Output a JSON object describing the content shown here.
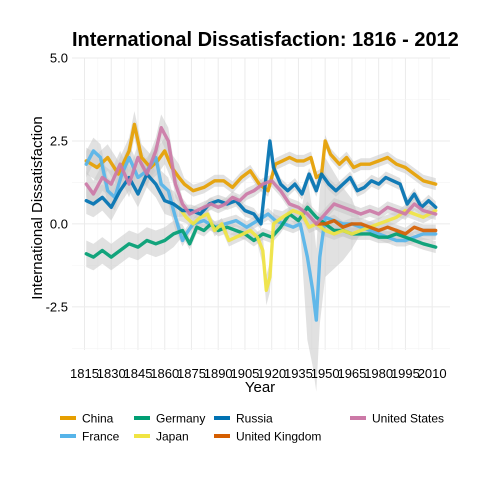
{
  "chart_data": {
    "type": "line",
    "title": "International Dissatisfaction: 1816 - 2012",
    "xlabel": "Year",
    "ylabel": "International Dissatisfaction",
    "xlim": [
      1808,
      2020
    ],
    "ylim": [
      -3.8,
      5.0
    ],
    "x_ticks": [
      "1815",
      "1830",
      "1845",
      "1860",
      "1875",
      "1890",
      "1905",
      "1920",
      "1935",
      "1950",
      "1965",
      "1980",
      "1995",
      "2010"
    ],
    "y_ticks": [
      "-2.5",
      "0.0",
      "2.5",
      "5.0"
    ],
    "grid": true,
    "legend_position": "bottom",
    "series": [
      {
        "name": "China",
        "color": "#E69F00",
        "points": [
          [
            1816,
            1.9
          ],
          [
            1822,
            1.7
          ],
          [
            1828,
            2.0
          ],
          [
            1834,
            1.5
          ],
          [
            1840,
            2.2
          ],
          [
            1843,
            3.0
          ],
          [
            1847,
            2.0
          ],
          [
            1852,
            1.7
          ],
          [
            1856,
            1.9
          ],
          [
            1860,
            2.2
          ],
          [
            1864,
            1.7
          ],
          [
            1868,
            1.4
          ],
          [
            1871,
            1.2
          ],
          [
            1876,
            1.0
          ],
          [
            1882,
            1.1
          ],
          [
            1888,
            1.3
          ],
          [
            1893,
            1.3
          ],
          [
            1898,
            1.1
          ],
          [
            1903,
            1.4
          ],
          [
            1908,
            1.6
          ],
          [
            1913,
            1.2
          ],
          [
            1918,
            1.0
          ],
          [
            1922,
            1.8
          ],
          [
            1926,
            1.9
          ],
          [
            1930,
            2.0
          ],
          [
            1934,
            1.9
          ],
          [
            1938,
            1.9
          ],
          [
            1942,
            2.0
          ],
          [
            1945,
            1.4
          ],
          [
            1948,
            1.5
          ],
          [
            1950,
            2.5
          ],
          [
            1953,
            2.1
          ],
          [
            1958,
            1.8
          ],
          [
            1962,
            2.0
          ],
          [
            1966,
            1.7
          ],
          [
            1970,
            1.8
          ],
          [
            1975,
            1.8
          ],
          [
            1980,
            1.9
          ],
          [
            1985,
            2.0
          ],
          [
            1990,
            1.8
          ],
          [
            1995,
            1.7
          ],
          [
            2000,
            1.5
          ],
          [
            2005,
            1.3
          ],
          [
            2012,
            1.2
          ]
        ]
      },
      {
        "name": "France",
        "color": "#56B4E9",
        "points": [
          [
            1816,
            1.8
          ],
          [
            1820,
            2.2
          ],
          [
            1824,
            2.0
          ],
          [
            1828,
            1.0
          ],
          [
            1832,
            0.8
          ],
          [
            1836,
            1.5
          ],
          [
            1840,
            2.0
          ],
          [
            1845,
            1.4
          ],
          [
            1850,
            1.6
          ],
          [
            1855,
            2.0
          ],
          [
            1858,
            1.2
          ],
          [
            1862,
            1.0
          ],
          [
            1866,
            0.2
          ],
          [
            1870,
            -0.5
          ],
          [
            1872,
            -0.3
          ],
          [
            1876,
            0.0
          ],
          [
            1882,
            0.1
          ],
          [
            1888,
            -0.1
          ],
          [
            1894,
            0.0
          ],
          [
            1900,
            0.1
          ],
          [
            1906,
            -0.1
          ],
          [
            1912,
            0.1
          ],
          [
            1918,
            0.3
          ],
          [
            1922,
            0.1
          ],
          [
            1927,
            0.0
          ],
          [
            1932,
            -0.1
          ],
          [
            1936,
            0.0
          ],
          [
            1940,
            -1.0
          ],
          [
            1943,
            -2.0
          ],
          [
            1945,
            -2.9
          ],
          [
            1947,
            -1.0
          ],
          [
            1950,
            0.2
          ],
          [
            1955,
            0.1
          ],
          [
            1960,
            0.0
          ],
          [
            1965,
            0.0
          ],
          [
            1970,
            -0.1
          ],
          [
            1975,
            -0.2
          ],
          [
            1980,
            -0.3
          ],
          [
            1985,
            -0.4
          ],
          [
            1990,
            -0.5
          ],
          [
            1995,
            -0.5
          ],
          [
            2000,
            -0.4
          ],
          [
            2005,
            -0.3
          ],
          [
            2012,
            -0.3
          ]
        ]
      },
      {
        "name": "Germany",
        "color": "#009E73",
        "points": [
          [
            1816,
            -0.9
          ],
          [
            1820,
            -1.0
          ],
          [
            1825,
            -0.8
          ],
          [
            1830,
            -1.0
          ],
          [
            1835,
            -0.8
          ],
          [
            1840,
            -0.6
          ],
          [
            1845,
            -0.7
          ],
          [
            1850,
            -0.5
          ],
          [
            1855,
            -0.6
          ],
          [
            1860,
            -0.5
          ],
          [
            1865,
            -0.3
          ],
          [
            1870,
            -0.2
          ],
          [
            1874,
            -0.6
          ],
          [
            1878,
            -0.1
          ],
          [
            1882,
            -0.2
          ],
          [
            1886,
            0.0
          ],
          [
            1890,
            -0.2
          ],
          [
            1895,
            -0.1
          ],
          [
            1900,
            -0.2
          ],
          [
            1905,
            -0.3
          ],
          [
            1910,
            -0.5
          ],
          [
            1915,
            -0.3
          ],
          [
            1920,
            -0.4
          ],
          [
            1925,
            -0.1
          ],
          [
            1930,
            0.3
          ],
          [
            1935,
            0.1
          ],
          [
            1940,
            0.5
          ],
          [
            1945,
            0.2
          ],
          [
            1950,
            0.0
          ],
          [
            1955,
            -0.2
          ],
          [
            1960,
            -0.2
          ],
          [
            1965,
            -0.3
          ],
          [
            1970,
            -0.3
          ],
          [
            1975,
            -0.3
          ],
          [
            1980,
            -0.4
          ],
          [
            1985,
            -0.4
          ],
          [
            1990,
            -0.3
          ],
          [
            1995,
            -0.4
          ],
          [
            2000,
            -0.5
          ],
          [
            2005,
            -0.6
          ],
          [
            2012,
            -0.7
          ]
        ]
      },
      {
        "name": "Japan",
        "color": "#F0E442",
        "points": [
          [
            1868,
            0.5
          ],
          [
            1872,
            0.2
          ],
          [
            1876,
            0.0
          ],
          [
            1880,
            0.2
          ],
          [
            1884,
            0.3
          ],
          [
            1888,
            -0.2
          ],
          [
            1892,
            0.0
          ],
          [
            1896,
            -0.5
          ],
          [
            1900,
            -0.4
          ],
          [
            1904,
            -0.3
          ],
          [
            1908,
            -0.2
          ],
          [
            1912,
            -0.4
          ],
          [
            1915,
            -0.8
          ],
          [
            1917,
            -2.0
          ],
          [
            1919,
            -1.6
          ],
          [
            1921,
            0.0
          ],
          [
            1926,
            0.2
          ],
          [
            1932,
            0.4
          ],
          [
            1937,
            0.3
          ],
          [
            1941,
            -0.1
          ],
          [
            1945,
            0.0
          ],
          [
            1950,
            -0.2
          ],
          [
            1955,
            -0.3
          ],
          [
            1960,
            -0.2
          ],
          [
            1965,
            -0.3
          ],
          [
            1970,
            -0.2
          ],
          [
            1975,
            -0.1
          ],
          [
            1980,
            0.0
          ],
          [
            1985,
            0.1
          ],
          [
            1990,
            0.2
          ],
          [
            1995,
            0.4
          ],
          [
            2000,
            0.3
          ],
          [
            2005,
            0.2
          ],
          [
            2012,
            0.4
          ]
        ]
      },
      {
        "name": "Russia",
        "color": "#0072B2",
        "points": [
          [
            1816,
            0.7
          ],
          [
            1820,
            0.6
          ],
          [
            1825,
            0.8
          ],
          [
            1830,
            0.5
          ],
          [
            1835,
            1.0
          ],
          [
            1840,
            1.4
          ],
          [
            1845,
            0.9
          ],
          [
            1850,
            1.5
          ],
          [
            1855,
            1.2
          ],
          [
            1860,
            0.7
          ],
          [
            1865,
            0.6
          ],
          [
            1870,
            0.4
          ],
          [
            1875,
            0.4
          ],
          [
            1880,
            0.3
          ],
          [
            1885,
            0.6
          ],
          [
            1890,
            0.7
          ],
          [
            1895,
            0.6
          ],
          [
            1900,
            0.7
          ],
          [
            1905,
            0.4
          ],
          [
            1910,
            0.3
          ],
          [
            1914,
            0.0
          ],
          [
            1917,
            1.5
          ],
          [
            1919,
            2.5
          ],
          [
            1921,
            1.7
          ],
          [
            1925,
            1.2
          ],
          [
            1929,
            1.0
          ],
          [
            1933,
            1.2
          ],
          [
            1937,
            0.9
          ],
          [
            1941,
            1.5
          ],
          [
            1945,
            1.0
          ],
          [
            1948,
            1.5
          ],
          [
            1952,
            1.2
          ],
          [
            1956,
            1.0
          ],
          [
            1960,
            1.2
          ],
          [
            1964,
            1.4
          ],
          [
            1968,
            1.0
          ],
          [
            1972,
            1.1
          ],
          [
            1976,
            1.3
          ],
          [
            1980,
            1.2
          ],
          [
            1984,
            1.4
          ],
          [
            1988,
            1.3
          ],
          [
            1992,
            1.2
          ],
          [
            1996,
            0.6
          ],
          [
            2000,
            0.9
          ],
          [
            2004,
            0.5
          ],
          [
            2008,
            0.7
          ],
          [
            2012,
            0.5
          ]
        ]
      },
      {
        "name": "United Kingdom",
        "color": "#D55E00",
        "points": [
          [
            1945,
            0.0
          ],
          [
            1950,
            0.0
          ],
          [
            1955,
            0.1
          ],
          [
            1960,
            -0.1
          ],
          [
            1965,
            0.0
          ],
          [
            1970,
            0.0
          ],
          [
            1975,
            -0.1
          ],
          [
            1980,
            -0.2
          ],
          [
            1985,
            -0.1
          ],
          [
            1990,
            -0.2
          ],
          [
            1995,
            -0.3
          ],
          [
            2000,
            -0.1
          ],
          [
            2005,
            -0.2
          ],
          [
            2012,
            -0.2
          ]
        ]
      },
      {
        "name": "United States",
        "color": "#CC79A7",
        "points": [
          [
            1816,
            1.2
          ],
          [
            1820,
            0.9
          ],
          [
            1825,
            1.4
          ],
          [
            1830,
            1.2
          ],
          [
            1835,
            1.8
          ],
          [
            1840,
            1.2
          ],
          [
            1845,
            2.0
          ],
          [
            1850,
            1.5
          ],
          [
            1855,
            2.2
          ],
          [
            1858,
            2.9
          ],
          [
            1862,
            2.5
          ],
          [
            1866,
            1.2
          ],
          [
            1870,
            0.6
          ],
          [
            1874,
            0.3
          ],
          [
            1878,
            0.4
          ],
          [
            1882,
            0.5
          ],
          [
            1886,
            0.6
          ],
          [
            1890,
            0.5
          ],
          [
            1894,
            0.6
          ],
          [
            1898,
            0.8
          ],
          [
            1902,
            0.7
          ],
          [
            1906,
            0.9
          ],
          [
            1910,
            1.0
          ],
          [
            1915,
            1.2
          ],
          [
            1920,
            1.3
          ],
          [
            1925,
            1.0
          ],
          [
            1930,
            0.6
          ],
          [
            1935,
            0.5
          ],
          [
            1940,
            0.3
          ],
          [
            1945,
            0.0
          ],
          [
            1950,
            0.3
          ],
          [
            1955,
            0.6
          ],
          [
            1960,
            0.5
          ],
          [
            1965,
            0.4
          ],
          [
            1970,
            0.3
          ],
          [
            1975,
            0.4
          ],
          [
            1980,
            0.3
          ],
          [
            1985,
            0.5
          ],
          [
            1990,
            0.4
          ],
          [
            1995,
            0.3
          ],
          [
            2000,
            0.6
          ],
          [
            2005,
            0.4
          ],
          [
            2012,
            0.3
          ]
        ]
      }
    ]
  }
}
